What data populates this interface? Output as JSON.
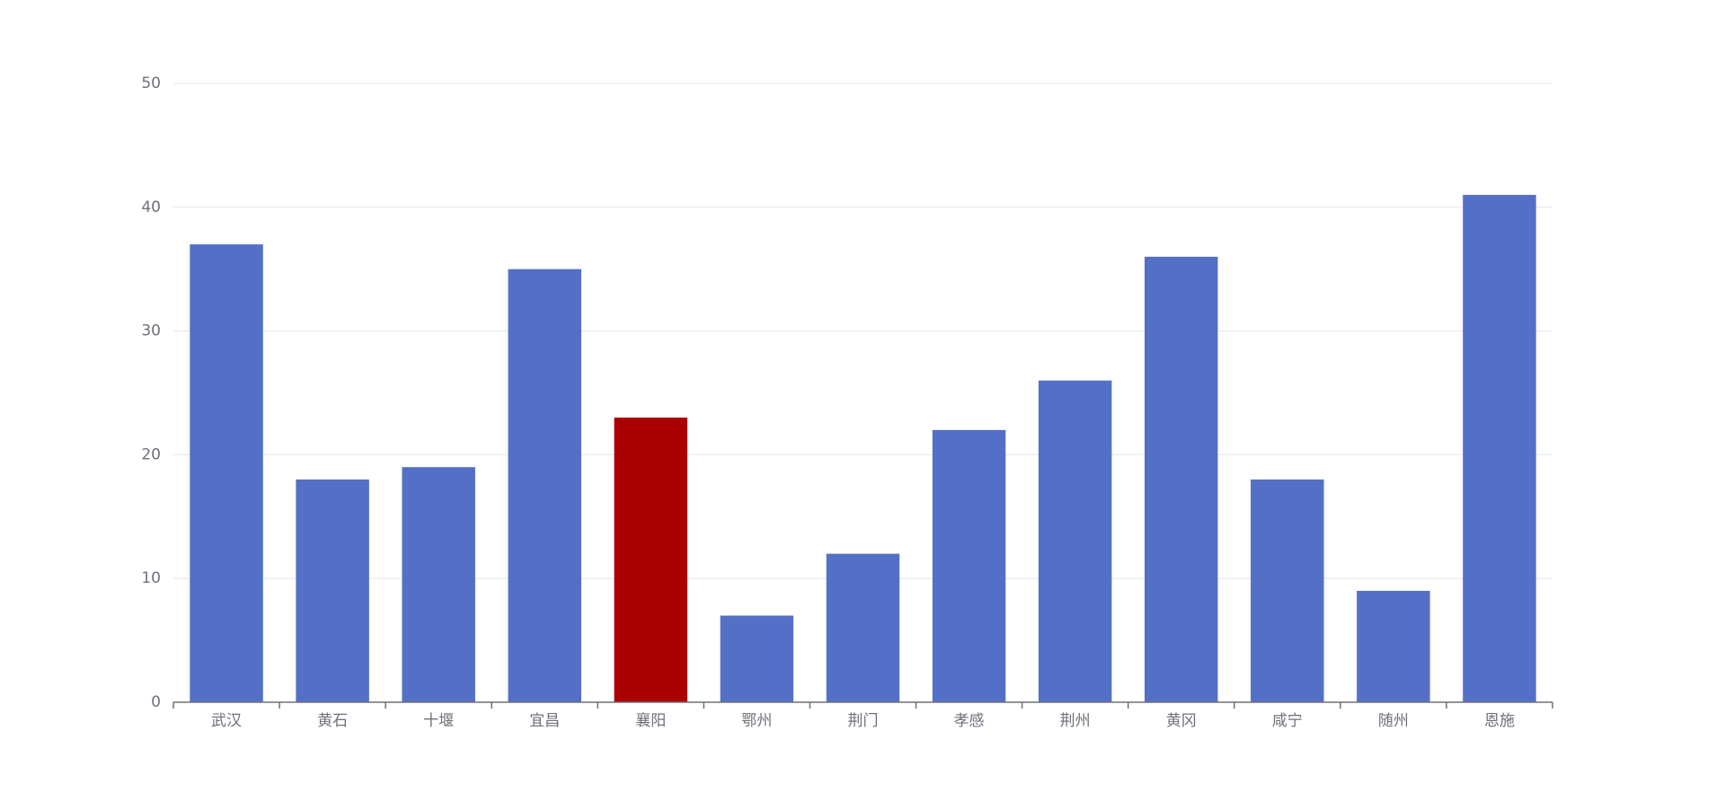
{
  "chart_data": {
    "type": "bar",
    "categories": [
      "武汉",
      "黄石",
      "十堰",
      "宜昌",
      "襄阳",
      "鄂州",
      "荆门",
      "孝感",
      "荆州",
      "黄冈",
      "咸宁",
      "随州",
      "恩施"
    ],
    "values": [
      37,
      18,
      19,
      35,
      23,
      7,
      12,
      22,
      26,
      36,
      18,
      9,
      41
    ],
    "colors": [
      "#5470c6",
      "#5470c6",
      "#5470c6",
      "#5470c6",
      "#aa0000",
      "#5470c6",
      "#5470c6",
      "#5470c6",
      "#5470c6",
      "#5470c6",
      "#5470c6",
      "#5470c6",
      "#5470c6"
    ],
    "ylim": [
      0,
      50
    ],
    "yticks": [
      0,
      10,
      20,
      30,
      40,
      50
    ],
    "grid": true
  }
}
